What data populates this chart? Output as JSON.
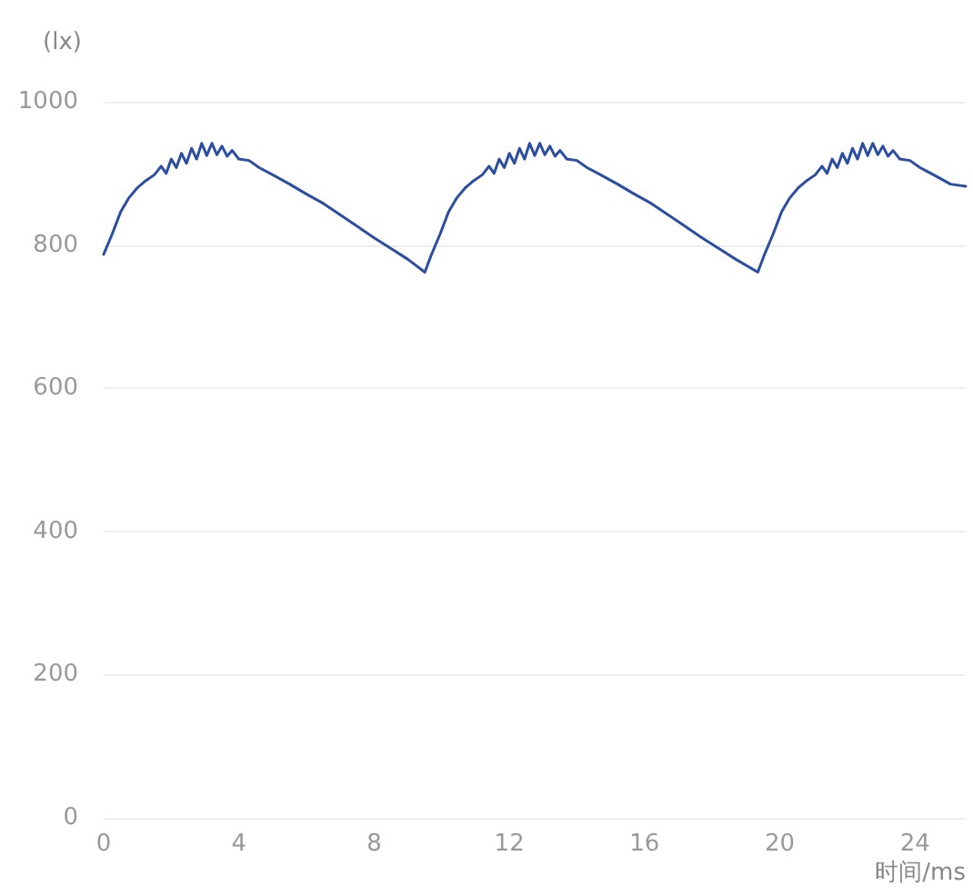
{
  "chart_data": {
    "type": "line",
    "xlabel": "时间/ms",
    "ylabel": "(lx)",
    "x": [
      0,
      0.25,
      0.5,
      0.75,
      1.0,
      1.25,
      1.5,
      1.7,
      1.85,
      2.0,
      2.15,
      2.3,
      2.45,
      2.6,
      2.75,
      2.9,
      3.05,
      3.2,
      3.35,
      3.5,
      3.65,
      3.8,
      4.0,
      4.3,
      4.6,
      5.0,
      5.5,
      6.0,
      6.5,
      7.0,
      7.5,
      8.0,
      8.5,
      9.0,
      9.5,
      9.7,
      9.95,
      10.2,
      10.45,
      10.7,
      10.95,
      11.2,
      11.4,
      11.55,
      11.7,
      11.85,
      12.0,
      12.15,
      12.3,
      12.45,
      12.6,
      12.75,
      12.9,
      13.05,
      13.2,
      13.35,
      13.5,
      13.7,
      14.0,
      14.3,
      14.7,
      15.2,
      15.7,
      16.2,
      16.7,
      17.2,
      17.7,
      18.2,
      18.7,
      19.35,
      19.55,
      19.8,
      20.05,
      20.3,
      20.55,
      20.8,
      21.05,
      21.25,
      21.4,
      21.55,
      21.7,
      21.85,
      22.0,
      22.15,
      22.3,
      22.45,
      22.6,
      22.75,
      22.9,
      23.05,
      23.2,
      23.35,
      23.55,
      23.85,
      24.15,
      24.55,
      25.05,
      25.5
    ],
    "series": [
      {
        "color": "#2b4ea2",
        "values": [
          787,
          815,
          846,
          866,
          880,
          890,
          898,
          910,
          900,
          920,
          908,
          928,
          914,
          935,
          920,
          942,
          925,
          942,
          926,
          938,
          924,
          932,
          920,
          918,
          908,
          898,
          885,
          871,
          858,
          842,
          826,
          810,
          795,
          780,
          762,
          787,
          815,
          846,
          866,
          880,
          890,
          898,
          910,
          900,
          920,
          908,
          928,
          914,
          935,
          920,
          942,
          925,
          942,
          926,
          938,
          924,
          932,
          920,
          918,
          908,
          898,
          885,
          871,
          858,
          842,
          826,
          810,
          795,
          780,
          762,
          787,
          815,
          846,
          866,
          880,
          890,
          898,
          910,
          900,
          920,
          908,
          928,
          914,
          935,
          920,
          942,
          925,
          942,
          926,
          938,
          924,
          932,
          920,
          918,
          908,
          898,
          885,
          882
        ]
      }
    ],
    "xlim": [
      0,
      25.5
    ],
    "xticks": [
      0,
      4,
      8,
      12,
      16,
      20,
      24
    ],
    "ylim": [
      0,
      1000
    ],
    "yticks": [
      0,
      200,
      400,
      600,
      800,
      1000
    ],
    "grid": "y",
    "marker": "none",
    "line_style": "solid"
  }
}
